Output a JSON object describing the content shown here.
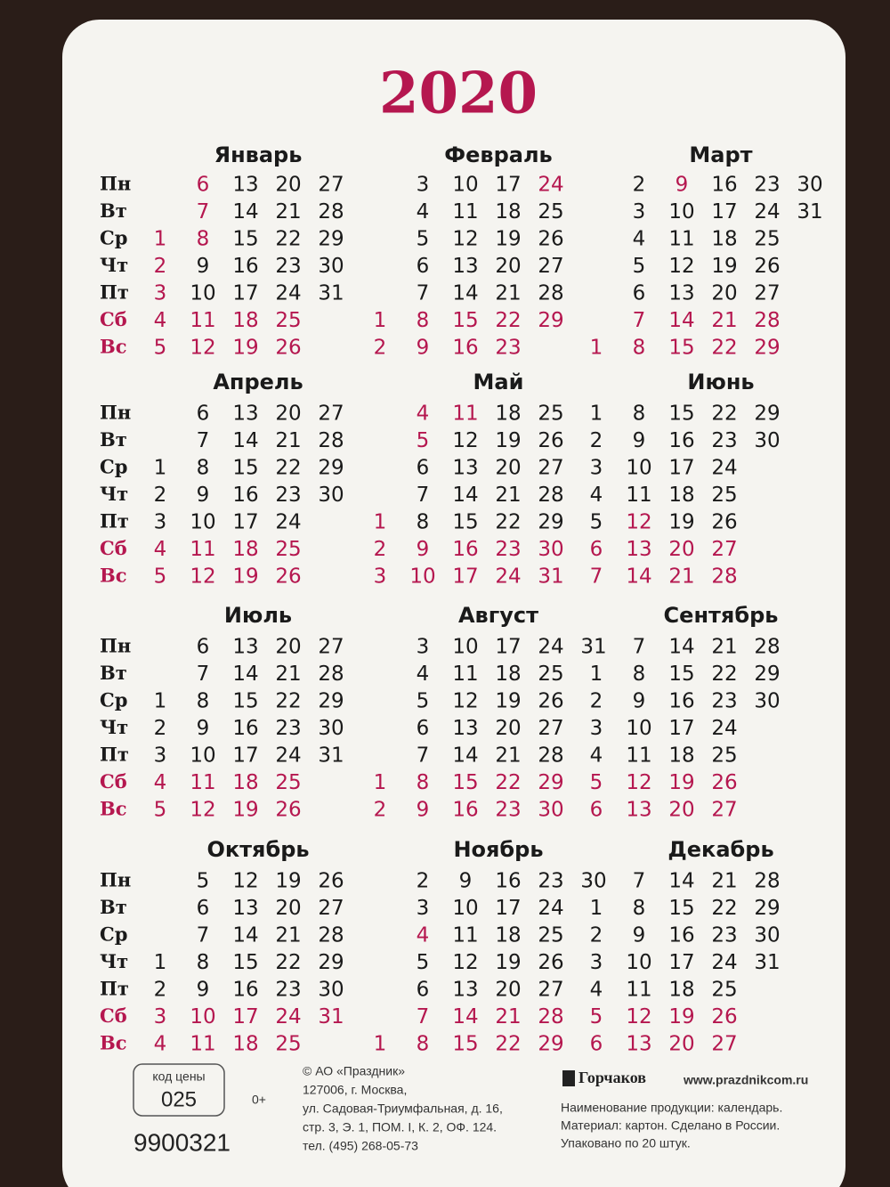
{
  "year": "2020",
  "weekdays": [
    "Пн",
    "Вт",
    "Ср",
    "Чт",
    "Пт",
    "Сб",
    "Вс"
  ],
  "colors": {
    "normal": "#1a1a1a",
    "holiday": "#b5174f"
  },
  "months": [
    {
      "name": "Январь",
      "holidays": [
        1,
        2,
        3,
        6,
        7,
        8
      ],
      "weeks": [
        [
          null,
          null,
          1,
          2,
          3,
          4,
          5
        ],
        [
          6,
          7,
          8,
          9,
          10,
          11,
          12
        ],
        [
          13,
          14,
          15,
          16,
          17,
          18,
          19
        ],
        [
          20,
          21,
          22,
          23,
          24,
          25,
          26
        ],
        [
          27,
          28,
          29,
          30,
          31,
          null,
          null
        ]
      ]
    },
    {
      "name": "Февраль",
      "holidays": [
        24
      ],
      "weeks": [
        [
          null,
          null,
          null,
          null,
          null,
          1,
          2
        ],
        [
          3,
          4,
          5,
          6,
          7,
          8,
          9
        ],
        [
          10,
          11,
          12,
          13,
          14,
          15,
          16
        ],
        [
          17,
          18,
          19,
          20,
          21,
          22,
          23
        ],
        [
          24,
          25,
          26,
          27,
          28,
          29,
          null
        ]
      ]
    },
    {
      "name": "Март",
      "holidays": [
        9
      ],
      "weeks": [
        [
          null,
          null,
          null,
          null,
          null,
          null,
          1
        ],
        [
          2,
          3,
          4,
          5,
          6,
          7,
          8
        ],
        [
          9,
          10,
          11,
          12,
          13,
          14,
          15
        ],
        [
          16,
          17,
          18,
          19,
          20,
          21,
          22
        ],
        [
          23,
          24,
          25,
          26,
          27,
          28,
          29
        ],
        [
          30,
          31,
          null,
          null,
          null,
          null,
          null
        ]
      ]
    },
    {
      "name": "Апрель",
      "holidays": [],
      "weeks": [
        [
          null,
          null,
          1,
          2,
          3,
          4,
          5
        ],
        [
          6,
          7,
          8,
          9,
          10,
          11,
          12
        ],
        [
          13,
          14,
          15,
          16,
          17,
          18,
          19
        ],
        [
          20,
          21,
          22,
          23,
          24,
          25,
          26
        ],
        [
          27,
          28,
          29,
          30,
          null,
          null,
          null
        ]
      ]
    },
    {
      "name": "Май",
      "holidays": [
        1,
        4,
        5,
        11
      ],
      "weeks": [
        [
          null,
          null,
          null,
          null,
          1,
          2,
          3
        ],
        [
          4,
          5,
          6,
          7,
          8,
          9,
          10
        ],
        [
          11,
          12,
          13,
          14,
          15,
          16,
          17
        ],
        [
          18,
          19,
          20,
          21,
          22,
          23,
          24
        ],
        [
          25,
          26,
          27,
          28,
          29,
          30,
          31
        ]
      ]
    },
    {
      "name": "Июнь",
      "holidays": [
        12
      ],
      "weeks": [
        [
          1,
          2,
          3,
          4,
          5,
          6,
          7
        ],
        [
          8,
          9,
          10,
          11,
          12,
          13,
          14
        ],
        [
          15,
          16,
          17,
          18,
          19,
          20,
          21
        ],
        [
          22,
          23,
          24,
          25,
          26,
          27,
          28
        ],
        [
          29,
          30,
          null,
          null,
          null,
          null,
          null
        ]
      ]
    },
    {
      "name": "Июль",
      "holidays": [],
      "weeks": [
        [
          null,
          null,
          1,
          2,
          3,
          4,
          5
        ],
        [
          6,
          7,
          8,
          9,
          10,
          11,
          12
        ],
        [
          13,
          14,
          15,
          16,
          17,
          18,
          19
        ],
        [
          20,
          21,
          22,
          23,
          24,
          25,
          26
        ],
        [
          27,
          28,
          29,
          30,
          31,
          null,
          null
        ]
      ]
    },
    {
      "name": "Август",
      "holidays": [],
      "weeks": [
        [
          null,
          null,
          null,
          null,
          null,
          1,
          2
        ],
        [
          3,
          4,
          5,
          6,
          7,
          8,
          9
        ],
        [
          10,
          11,
          12,
          13,
          14,
          15,
          16
        ],
        [
          17,
          18,
          19,
          20,
          21,
          22,
          23
        ],
        [
          24,
          25,
          26,
          27,
          28,
          29,
          30
        ],
        [
          31,
          null,
          null,
          null,
          null,
          null,
          null
        ]
      ]
    },
    {
      "name": "Сентябрь",
      "holidays": [],
      "weeks": [
        [
          null,
          1,
          2,
          3,
          4,
          5,
          6
        ],
        [
          7,
          8,
          9,
          10,
          11,
          12,
          13
        ],
        [
          14,
          15,
          16,
          17,
          18,
          19,
          20
        ],
        [
          21,
          22,
          23,
          24,
          25,
          26,
          27
        ],
        [
          28,
          29,
          30,
          null,
          null,
          null,
          null
        ]
      ]
    },
    {
      "name": "Октябрь",
      "holidays": [],
      "weeks": [
        [
          null,
          null,
          null,
          1,
          2,
          3,
          4
        ],
        [
          5,
          6,
          7,
          8,
          9,
          10,
          11
        ],
        [
          12,
          13,
          14,
          15,
          16,
          17,
          18
        ],
        [
          19,
          20,
          21,
          22,
          23,
          24,
          25
        ],
        [
          26,
          27,
          28,
          29,
          30,
          31,
          null
        ]
      ]
    },
    {
      "name": "Ноябрь",
      "holidays": [
        4
      ],
      "weeks": [
        [
          null,
          null,
          null,
          null,
          null,
          null,
          1
        ],
        [
          2,
          3,
          4,
          5,
          6,
          7,
          8
        ],
        [
          9,
          10,
          11,
          12,
          13,
          14,
          15
        ],
        [
          16,
          17,
          18,
          19,
          20,
          21,
          22
        ],
        [
          23,
          24,
          25,
          26,
          27,
          28,
          29
        ],
        [
          30,
          null,
          null,
          null,
          null,
          null,
          null
        ]
      ]
    },
    {
      "name": "Декабрь",
      "holidays": [],
      "weeks": [
        [
          null,
          1,
          2,
          3,
          4,
          5,
          6
        ],
        [
          7,
          8,
          9,
          10,
          11,
          12,
          13
        ],
        [
          14,
          15,
          16,
          17,
          18,
          19,
          20
        ],
        [
          21,
          22,
          23,
          24,
          25,
          26,
          27
        ],
        [
          28,
          29,
          30,
          31,
          null,
          null,
          null
        ]
      ]
    }
  ],
  "footer": {
    "price_label": "код цены",
    "price_code": "025",
    "age": "0+",
    "barcode": "9900321",
    "address": [
      "© АО «Праздник»",
      "127006, г. Москва,",
      "ул. Садовая-Триумфальная, д. 16,",
      "стр. 3, Э. 1, ПОМ. I, К. 2, ОФ. 124.",
      "тел. (495) 268-05-73"
    ],
    "brand": "Горчаков",
    "website": "www.prazdnikcom.ru",
    "product": [
      "Наименование продукции: календарь.",
      "Материал: картон. Сделано в России.",
      "Упаковано по 20 штук."
    ]
  }
}
